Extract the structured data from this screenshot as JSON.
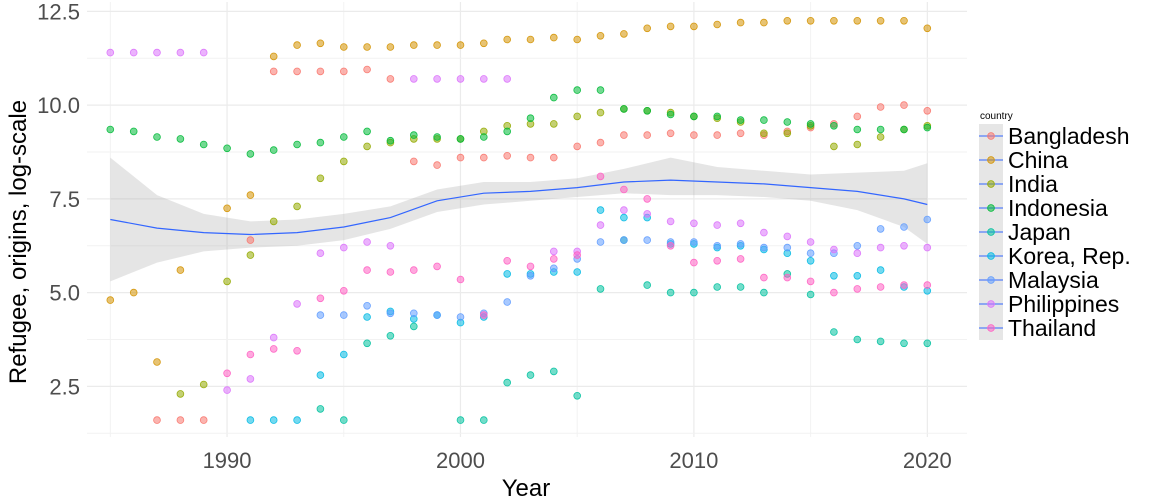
{
  "chart_data": {
    "type": "scatter",
    "xlabel": "Year",
    "ylabel": "Refugee, origins, log-scale",
    "xlim": [
      1984,
      2021.7
    ],
    "ylim": [
      1.15,
      12.75
    ],
    "xticks": [
      1990,
      2000,
      2010,
      2020
    ],
    "yticks": [
      2.5,
      5.0,
      7.5,
      10.0,
      12.5
    ],
    "ytick_labels": [
      "2.5",
      "5.0",
      "7.5",
      "10.0",
      "12.5"
    ],
    "grid": true,
    "legend": {
      "title": "country",
      "position": "right"
    },
    "series": [
      {
        "name": "Bangladesh",
        "color": "#F8766D",
        "x": [
          1987,
          1988,
          1989,
          1991,
          1992,
          1993,
          1994,
          1995,
          1996,
          1997,
          1998,
          1999,
          2000,
          2001,
          2002,
          2003,
          2004,
          2005,
          2006,
          2007,
          2008,
          2009,
          2010,
          2011,
          2012,
          2013,
          2014,
          2015,
          2016,
          2017,
          2018,
          2019,
          2020
        ],
        "y": [
          1.6,
          1.6,
          1.6,
          6.4,
          10.9,
          10.9,
          10.9,
          10.9,
          10.95,
          10.7,
          8.5,
          8.4,
          8.6,
          8.6,
          8.65,
          8.6,
          8.6,
          8.9,
          9.0,
          9.2,
          9.2,
          9.25,
          9.2,
          9.2,
          9.25,
          9.2,
          9.3,
          9.4,
          9.5,
          9.7,
          9.95,
          10.0,
          9.85
        ]
      },
      {
        "name": "China",
        "color": "#D39200",
        "x": [
          1985,
          1986,
          1987,
          1988,
          1990,
          1991,
          1992,
          1993,
          1994,
          1995,
          1996,
          1997,
          1998,
          1999,
          2000,
          2001,
          2002,
          2003,
          2004,
          2005,
          2006,
          2007,
          2008,
          2009,
          2010,
          2011,
          2012,
          2013,
          2014,
          2015,
          2016,
          2017,
          2018,
          2019,
          2020
        ],
        "y": [
          4.8,
          5.0,
          3.15,
          5.6,
          7.25,
          7.6,
          11.3,
          11.6,
          11.65,
          11.55,
          11.55,
          11.55,
          11.6,
          11.6,
          11.6,
          11.65,
          11.75,
          11.75,
          11.8,
          11.75,
          11.85,
          11.9,
          12.05,
          12.1,
          12.1,
          12.15,
          12.2,
          12.2,
          12.25,
          12.25,
          12.25,
          12.25,
          12.25,
          12.25,
          12.05
        ]
      },
      {
        "name": "India",
        "color": "#93AA00",
        "x": [
          1988,
          1989,
          1990,
          1991,
          1992,
          1993,
          1994,
          1995,
          1996,
          1997,
          1998,
          1999,
          2000,
          2001,
          2002,
          2003,
          2004,
          2005,
          2006,
          2007,
          2008,
          2009,
          2010,
          2011,
          2012,
          2013,
          2014,
          2015,
          2016,
          2017,
          2018,
          2019,
          2020
        ],
        "y": [
          2.3,
          2.55,
          5.3,
          6.0,
          6.9,
          7.3,
          8.05,
          8.5,
          8.9,
          9.0,
          9.1,
          9.1,
          9.1,
          9.3,
          9.45,
          9.5,
          9.5,
          9.7,
          9.8,
          9.9,
          9.85,
          9.8,
          9.7,
          9.65,
          9.55,
          9.25,
          9.25,
          9.45,
          8.9,
          8.95,
          9.15,
          9.35,
          9.45
        ]
      },
      {
        "name": "Indonesia",
        "color": "#00BA38",
        "x": [
          1985,
          1986,
          1987,
          1988,
          1989,
          1990,
          1991,
          1992,
          1993,
          1994,
          1995,
          1996,
          1997,
          1998,
          1999,
          2000,
          2001,
          2002,
          2003,
          2004,
          2005,
          2006,
          2007,
          2008,
          2009,
          2010,
          2011,
          2012,
          2013,
          2014,
          2015,
          2016,
          2017,
          2018,
          2019,
          2020
        ],
        "y": [
          9.35,
          9.3,
          9.15,
          9.1,
          8.95,
          8.85,
          8.7,
          8.8,
          8.95,
          9.0,
          9.15,
          9.3,
          9.05,
          9.2,
          9.15,
          9.1,
          9.15,
          9.3,
          9.65,
          10.2,
          10.4,
          10.4,
          9.9,
          9.85,
          9.75,
          9.7,
          9.7,
          9.6,
          9.6,
          9.55,
          9.5,
          9.45,
          9.35,
          9.35,
          9.35,
          9.4
        ]
      },
      {
        "name": "Japan",
        "color": "#00C19F",
        "x": [
          1994,
          1995,
          1996,
          1997,
          1998,
          2000,
          2001,
          2002,
          2003,
          2004,
          2005,
          2006,
          2007,
          2008,
          2009,
          2010,
          2011,
          2012,
          2013,
          2014,
          2015,
          2016,
          2017,
          2018,
          2019,
          2020
        ],
        "y": [
          1.9,
          1.6,
          3.65,
          3.85,
          4.1,
          1.6,
          1.6,
          2.6,
          2.8,
          2.9,
          2.25,
          5.1,
          6.4,
          5.2,
          5.0,
          5.0,
          5.15,
          5.15,
          5.0,
          5.5,
          4.95,
          3.95,
          3.75,
          3.7,
          3.65,
          3.65
        ]
      },
      {
        "name": "Korea, Rep.",
        "color": "#00B9E3",
        "x": [
          1991,
          1992,
          1993,
          1994,
          1995,
          1996,
          1997,
          1998,
          1999,
          2000,
          2001,
          2002,
          2003,
          2004,
          2005,
          2006,
          2007,
          2008,
          2009,
          2010,
          2011,
          2012,
          2013,
          2014,
          2015,
          2016,
          2017,
          2018,
          2019,
          2020
        ],
        "y": [
          1.6,
          1.6,
          1.6,
          2.8,
          3.35,
          4.35,
          4.5,
          4.3,
          4.4,
          4.2,
          4.35,
          5.5,
          5.5,
          5.55,
          5.55,
          7.2,
          7.0,
          7.0,
          6.3,
          6.3,
          6.2,
          6.25,
          6.15,
          6.05,
          5.85,
          5.45,
          5.45,
          5.6,
          5.15,
          5.05
        ]
      },
      {
        "name": "Malaysia",
        "color": "#619CFF",
        "x": [
          1994,
          1995,
          1996,
          1997,
          1998,
          1999,
          2000,
          2001,
          2002,
          2003,
          2004,
          2005,
          2006,
          2007,
          2008,
          2009,
          2010,
          2011,
          2012,
          2013,
          2014,
          2015,
          2016,
          2017,
          2018,
          2019,
          2020
        ],
        "y": [
          4.4,
          4.4,
          4.65,
          4.45,
          4.45,
          4.4,
          4.35,
          4.45,
          4.75,
          5.45,
          5.65,
          5.9,
          6.35,
          6.4,
          6.4,
          6.35,
          6.35,
          6.25,
          6.3,
          6.2,
          6.2,
          6.05,
          6.05,
          6.25,
          6.7,
          6.75,
          6.95
        ]
      },
      {
        "name": "Philippines",
        "color": "#DB72FB",
        "x": [
          1985,
          1986,
          1987,
          1988,
          1989,
          1990,
          1991,
          1992,
          1993,
          1994,
          1995,
          1996,
          1997,
          1998,
          1999,
          2000,
          2001,
          2002,
          2004,
          2005,
          2006,
          2007,
          2008,
          2009,
          2010,
          2011,
          2012,
          2013,
          2014,
          2015,
          2016,
          2017,
          2018,
          2019,
          2020
        ],
        "y": [
          11.4,
          11.4,
          11.4,
          11.4,
          11.4,
          2.4,
          2.7,
          3.8,
          4.7,
          6.05,
          6.2,
          6.35,
          6.25,
          10.7,
          10.7,
          10.7,
          10.7,
          10.7,
          6.1,
          6.1,
          6.8,
          7.2,
          7.1,
          6.9,
          6.85,
          6.8,
          6.85,
          6.6,
          6.5,
          6.35,
          6.15,
          6.05,
          6.2,
          6.25,
          6.2
        ]
      },
      {
        "name": "Thailand",
        "color": "#FF61C3",
        "x": [
          1990,
          1991,
          1992,
          1993,
          1994,
          1995,
          1996,
          1997,
          1998,
          1999,
          2000,
          2001,
          2002,
          2003,
          2004,
          2005,
          2006,
          2007,
          2008,
          2009,
          2010,
          2011,
          2012,
          2013,
          2014,
          2015,
          2016,
          2017,
          2018,
          2019,
          2020
        ],
        "y": [
          2.85,
          3.35,
          3.5,
          3.45,
          4.85,
          5.05,
          5.6,
          5.55,
          5.6,
          5.7,
          5.35,
          4.4,
          5.85,
          5.7,
          5.9,
          6.0,
          8.1,
          7.75,
          7.5,
          6.25,
          5.8,
          5.85,
          5.9,
          5.4,
          5.4,
          5.3,
          5.0,
          5.1,
          5.15,
          5.2,
          5.2
        ]
      }
    ],
    "smooth": {
      "color": "#3366FF",
      "x": [
        1985,
        1987,
        1989,
        1991,
        1993,
        1995,
        1997,
        1999,
        2001,
        2003,
        2005,
        2007,
        2009,
        2011,
        2013,
        2015,
        2017,
        2019,
        2020
      ],
      "y": [
        6.95,
        6.72,
        6.6,
        6.55,
        6.6,
        6.75,
        7.0,
        7.45,
        7.65,
        7.7,
        7.8,
        7.95,
        8.0,
        7.95,
        7.9,
        7.8,
        7.7,
        7.5,
        7.35
      ],
      "lo": [
        5.3,
        5.8,
        6.1,
        6.2,
        6.25,
        6.4,
        6.7,
        7.15,
        7.35,
        7.45,
        7.55,
        7.65,
        7.6,
        7.6,
        7.55,
        7.45,
        7.2,
        6.75,
        6.3
      ],
      "hi": [
        8.6,
        7.6,
        7.1,
        6.9,
        6.95,
        7.1,
        7.3,
        7.75,
        7.95,
        7.95,
        8.05,
        8.3,
        8.6,
        8.35,
        8.25,
        8.15,
        8.2,
        8.25,
        8.45
      ]
    }
  }
}
